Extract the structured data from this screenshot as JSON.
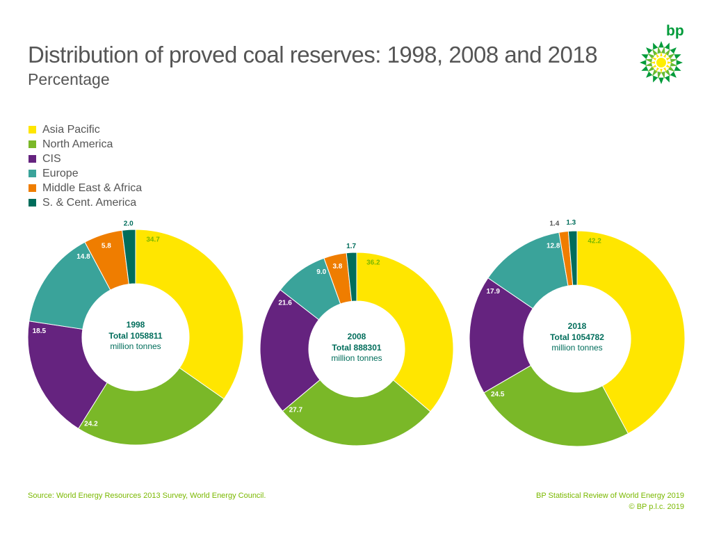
{
  "header": {
    "title": "Distribution of proved coal reserves: 1998, 2008 and 2018",
    "subtitle": "Percentage",
    "logo_text": "bp"
  },
  "legend": [
    {
      "label": "Asia Pacific",
      "color": "#ffe600"
    },
    {
      "label": "North America",
      "color": "#7ab828"
    },
    {
      "label": "CIS",
      "color": "#65237f"
    },
    {
      "label": "Europe",
      "color": "#3aa39a"
    },
    {
      "label": "Middle East & Africa",
      "color": "#ef7d00"
    },
    {
      "label": "S. & Cent. America",
      "color": "#006d5b"
    }
  ],
  "chart_data": [
    {
      "type": "pie",
      "center_year": "1998",
      "center_total": "Total 1058811",
      "center_unit": "million tonnes",
      "categories": [
        "Asia Pacific",
        "North America",
        "CIS",
        "Europe",
        "Middle East & Africa",
        "S. & Cent. America"
      ],
      "values": [
        34.7,
        24.2,
        18.5,
        14.8,
        5.8,
        2.0
      ],
      "value_labels": [
        "34.7",
        "24.2",
        "18.5",
        "14.8",
        "5.8",
        "2.0"
      ]
    },
    {
      "type": "pie",
      "center_year": "2008",
      "center_total": "Total 888301",
      "center_unit": "million tonnes",
      "categories": [
        "Asia Pacific",
        "North America",
        "CIS",
        "Europe",
        "Middle East & Africa",
        "S. & Cent. America"
      ],
      "values": [
        36.2,
        27.7,
        21.6,
        9.0,
        3.8,
        1.7
      ],
      "value_labels": [
        "36.2",
        "27.7",
        "21.6",
        "9.0",
        "3.8",
        "1.7"
      ]
    },
    {
      "type": "pie",
      "center_year": "2018",
      "center_total": "Total 1054782",
      "center_unit": "million tonnes",
      "categories": [
        "Asia Pacific",
        "North America",
        "CIS",
        "Europe",
        "Middle East & Africa",
        "S. & Cent. America"
      ],
      "values": [
        42.2,
        24.5,
        17.9,
        12.8,
        1.4,
        1.3
      ],
      "value_labels": [
        "42.2",
        "24.5",
        "17.9",
        "12.8",
        "1.4",
        "1.3"
      ]
    }
  ],
  "footer": {
    "source": "Source: World Energy Resources 2013 Survey, World Energy Council.",
    "publication": "BP Statistical Review of World Energy 2019",
    "copyright": "© BP p.l.c. 2019"
  }
}
